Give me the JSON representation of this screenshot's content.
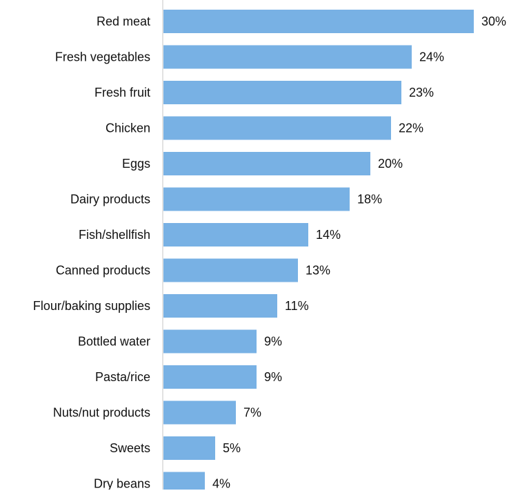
{
  "chart_data": {
    "type": "bar",
    "orientation": "horizontal",
    "categories": [
      "Red meat",
      "Fresh vegetables",
      "Fresh fruit",
      "Chicken",
      "Eggs",
      "Dairy products",
      "Fish/shellfish",
      "Canned products",
      "Flour/baking supplies",
      "Bottled water",
      "Pasta/rice",
      "Nuts/nut products",
      "Sweets",
      "Dry beans"
    ],
    "values": [
      30,
      24,
      23,
      22,
      20,
      18,
      14,
      13,
      11,
      9,
      9,
      7,
      5,
      4
    ],
    "data_labels": [
      "30%",
      "24%",
      "23%",
      "22%",
      "20%",
      "18%",
      "14%",
      "13%",
      "11%",
      "9%",
      "9%",
      "7%",
      "5%",
      "4%"
    ],
    "title": "",
    "xlabel": "",
    "ylabel": "",
    "xlim": [
      0,
      30
    ],
    "bar_color": "#78b1e4",
    "axis_color": "#d9d9d9",
    "grid": false,
    "legend": "none"
  }
}
